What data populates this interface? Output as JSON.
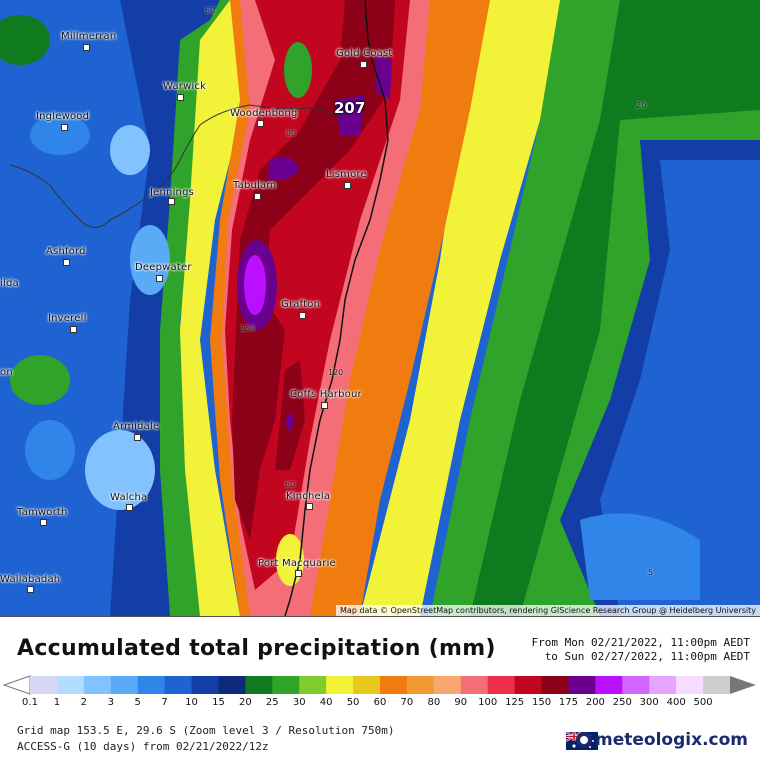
{
  "map": {
    "towns": [
      {
        "name": "Millmerran"
      },
      {
        "name": "Warwick"
      },
      {
        "name": "Inglewood"
      },
      {
        "name": "Woodenbong"
      },
      {
        "name": "Gold Coast"
      },
      {
        "name": "Tabulam"
      },
      {
        "name": "Lismore"
      },
      {
        "name": "Jennings"
      },
      {
        "name": "Ashford"
      },
      {
        "name": "Deepwater"
      },
      {
        "name": "ilda"
      },
      {
        "name": "Grafton"
      },
      {
        "name": "Inverell"
      },
      {
        "name": "on"
      },
      {
        "name": "Coffs Harbour"
      },
      {
        "name": "Armidale"
      },
      {
        "name": "Walcha"
      },
      {
        "name": "Kinchela"
      },
      {
        "name": "Tamworth"
      },
      {
        "name": "Port Macquarie"
      },
      {
        "name": "Wallabadah"
      }
    ],
    "contour_labels": [
      "60",
      "80",
      "150",
      "120",
      "60",
      "20",
      "5"
    ],
    "max_value": "207",
    "attribution": "Map data © OpenStreetMap contributors, rendering GIScience Research Group @ Heidelberg University"
  },
  "legend": {
    "title": "Accumulated total precipitation (mm)",
    "period_from": "From Mon 02/21/2022, 11:00pm AEDT",
    "period_to": "to Sun 02/27/2022, 11:00pm AEDT",
    "scale_values": [
      "0.1",
      "1",
      "2",
      "3",
      "5",
      "7",
      "10",
      "15",
      "20",
      "25",
      "30",
      "40",
      "50",
      "60",
      "70",
      "80",
      "90",
      "100",
      "125",
      "150",
      "175",
      "200",
      "250",
      "300",
      "400",
      "500"
    ],
    "scale_colors": [
      "#d8d8f4",
      "#b4dcff",
      "#82c3ff",
      "#5aaaf5",
      "#2f86e8",
      "#1f63d2",
      "#133ea8",
      "#0d2a7c",
      "#0f7a1e",
      "#2fa32a",
      "#7fcc2e",
      "#f2f238",
      "#e8c81c",
      "#f07c10",
      "#f49a35",
      "#f6a870",
      "#f46e78",
      "#ee2e4a",
      "#c20620",
      "#8c0018",
      "#6a0090",
      "#bb10ff",
      "#d264ff",
      "#e6a4ff",
      "#f6dcff",
      "#cfcfcf"
    ]
  },
  "footer": {
    "grid": "Grid map 153.5 E, 29.6 S (Zoom level 3 / Resolution 750m)",
    "model": "ACCESS-G (10 days)  from  02/21/2022/12z",
    "brand": "meteologix.com"
  }
}
